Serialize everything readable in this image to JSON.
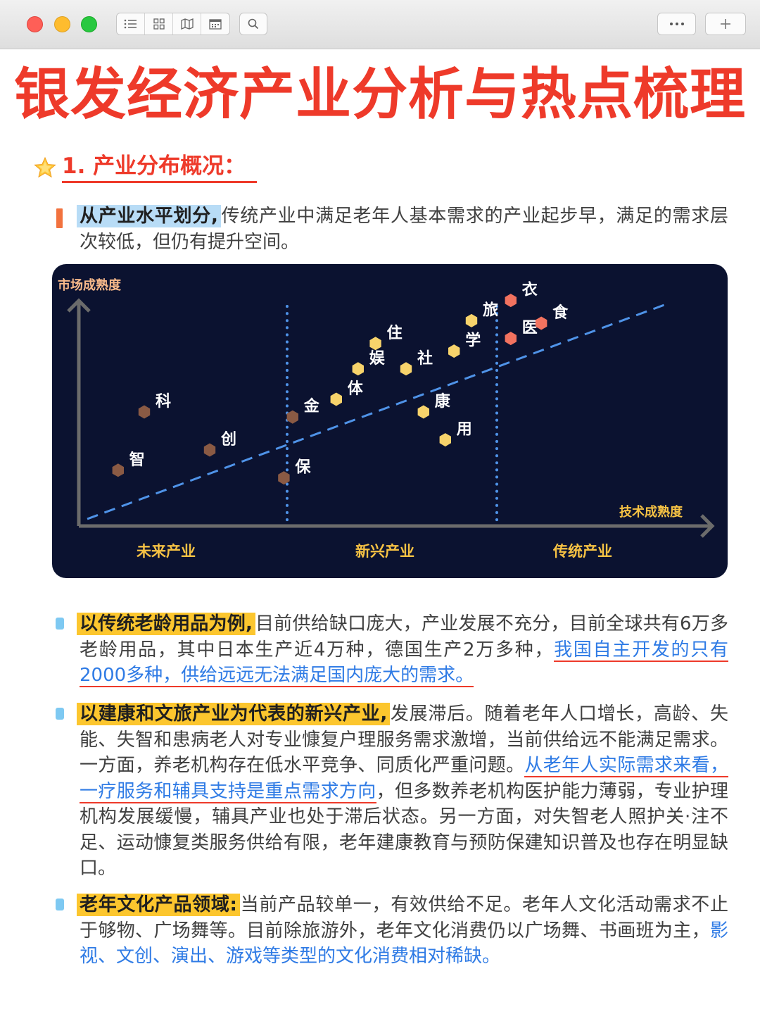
{
  "window": {
    "toolbar_icons": [
      "list-icon",
      "grid-icon",
      "map-icon",
      "calendar-icon",
      "search-icon",
      "more-icon",
      "plus-icon"
    ]
  },
  "title": "银发经济产业分析与热点梳理",
  "section": {
    "heading": "1. 产业分布概况："
  },
  "intro": {
    "highlight": "从产业水平划分,",
    "text": "传统产业中满足老年人基本需求的产业起步早，满足的需求层次较低，但仍有提升空间。"
  },
  "chart_data": {
    "type": "scatter",
    "ylabel": "市场成熟度",
    "xlabel": "技术成熟度",
    "zones": [
      "未来产业",
      "新兴产业",
      "传统产业"
    ],
    "trend_line": "dashed",
    "colors": {
      "future": "#8a5a44",
      "emerging": "#f7d36b",
      "traditional": "#f2725f",
      "trend": "#4f93e8",
      "divider": "#4f93e8",
      "axis": "#6b6b6b"
    },
    "points": [
      {
        "label": "智",
        "group": "future",
        "x": 0.09,
        "y": 0.22
      },
      {
        "label": "科",
        "group": "future",
        "x": 0.15,
        "y": 0.45
      },
      {
        "label": "创",
        "group": "future",
        "x": 0.3,
        "y": 0.3
      },
      {
        "label": "保",
        "group": "future",
        "x": 0.47,
        "y": 0.19
      },
      {
        "label": "金",
        "group": "future",
        "x": 0.49,
        "y": 0.43
      },
      {
        "label": "体",
        "group": "emerging",
        "x": 0.59,
        "y": 0.5
      },
      {
        "label": "娱",
        "group": "emerging",
        "x": 0.64,
        "y": 0.62
      },
      {
        "label": "住",
        "group": "emerging",
        "x": 0.68,
        "y": 0.72
      },
      {
        "label": "社",
        "group": "emerging",
        "x": 0.75,
        "y": 0.62
      },
      {
        "label": "康",
        "group": "emerging",
        "x": 0.79,
        "y": 0.45
      },
      {
        "label": "用",
        "group": "emerging",
        "x": 0.84,
        "y": 0.34
      },
      {
        "label": "学",
        "group": "emerging",
        "x": 0.86,
        "y": 0.69
      },
      {
        "label": "旅",
        "group": "emerging",
        "x": 0.9,
        "y": 0.81
      },
      {
        "label": "衣",
        "group": "traditional",
        "x": 0.99,
        "y": 0.89
      },
      {
        "label": "医",
        "group": "traditional",
        "x": 0.99,
        "y": 0.74
      },
      {
        "label": "食",
        "group": "traditional",
        "x": 1.06,
        "y": 0.8
      }
    ]
  },
  "bullets": [
    {
      "highlight": "以传统老龄用品为例,",
      "text": "目前供给缺口庞大，产业发展不充分，目前全球共有6万多老龄用品，其中日本生产近4万种，德国生产2万多种，",
      "link": "我国自主开发的只有2000多种，供给远远无法满足国内庞大的需求。"
    },
    {
      "highlight": "以建康和文旅产业为代表的新兴产业,",
      "text": "发展滞后。随着老年人口增长，高龄、失能、失智和患病老人对专业慷复户理服务需求激增，当前供给远不能满足需求。一方面，养老机构存在低水平竞争、同质化严重问题。",
      "link": "从老年人实际需求来看，一疗服务和辅具支持是重点需求方向",
      "text2": "，但多数养老机构医护能力薄弱，专业护理机构发展缓慢，辅具产业也处于滞后状态。另一方面，对失智老人照护关·注不足、运动慷复类服务供给有限，老年建康教育与预防保建知识普及也存在明显缺口。"
    },
    {
      "highlight": "老年文化产品领域:",
      "text": "当前产品较单一，有效供给不足。老年人文化活动需求不止于够物、广场舞等。目前除旅游外，老年文化消费仍以广场舞、书画班为主，",
      "link": "影视、文创、演出、游戏等类型的文化消费相对稀缺。"
    }
  ]
}
